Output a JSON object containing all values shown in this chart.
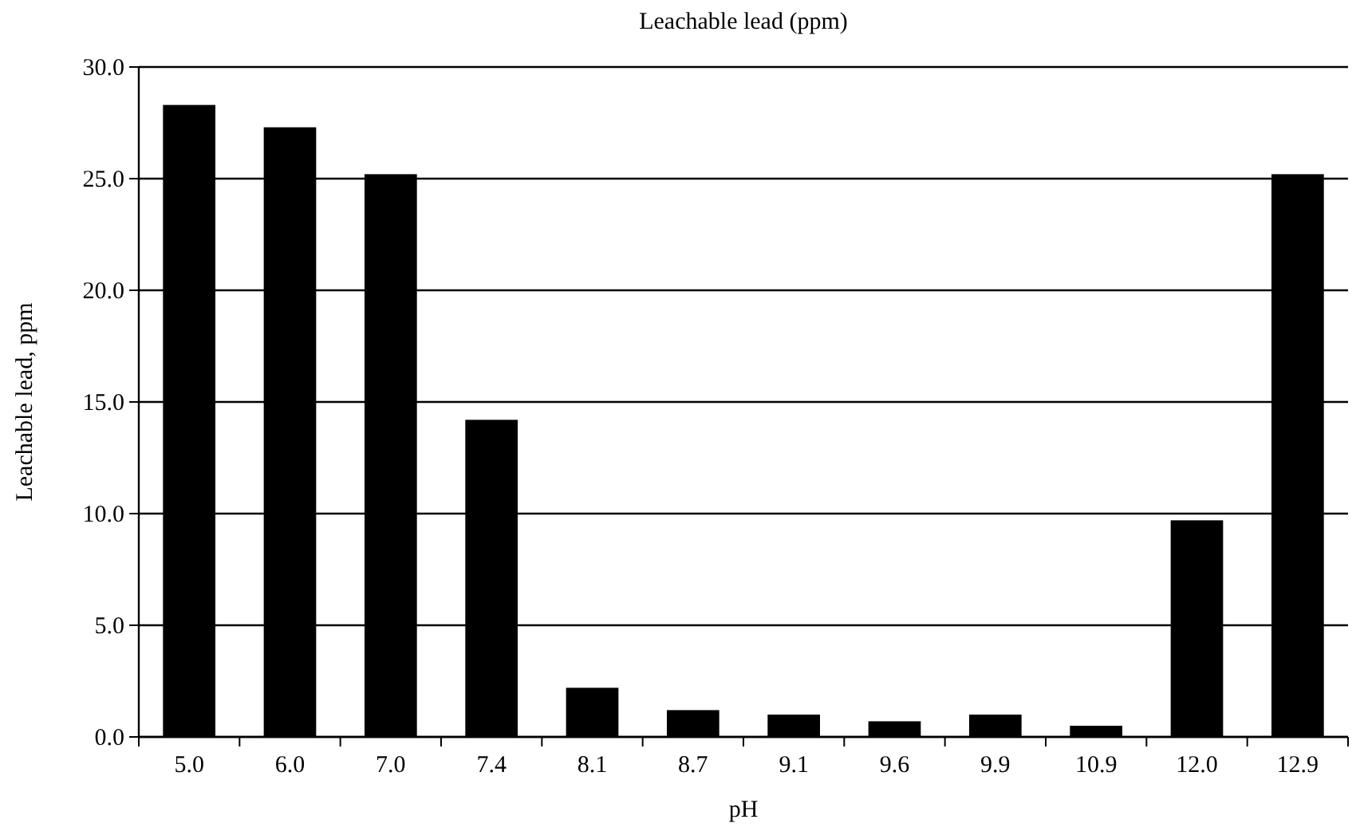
{
  "chart_data": {
    "type": "bar",
    "title": "Leachable lead (ppm)",
    "xlabel": "pH",
    "ylabel": "Leachable lead, ppm",
    "categories": [
      "5.0",
      "6.0",
      "7.0",
      "7.4",
      "8.1",
      "8.7",
      "9.1",
      "9.6",
      "9.9",
      "10.9",
      "12.0",
      "12.9"
    ],
    "values": [
      28.3,
      27.3,
      25.2,
      14.2,
      2.2,
      1.2,
      1.0,
      0.7,
      1.0,
      0.5,
      9.7,
      25.2
    ],
    "color": "#000000",
    "ylim": [
      0,
      30
    ],
    "yticks": [
      {
        "value": 0,
        "label": "0.0"
      },
      {
        "value": 5,
        "label": "5.0"
      },
      {
        "value": 10,
        "label": "10.0"
      },
      {
        "value": 15,
        "label": "15.0"
      },
      {
        "value": 20,
        "label": "20.0"
      },
      {
        "value": 25,
        "label": "25.0"
      },
      {
        "value": 30,
        "label": "30.0"
      }
    ],
    "grid": "y"
  }
}
